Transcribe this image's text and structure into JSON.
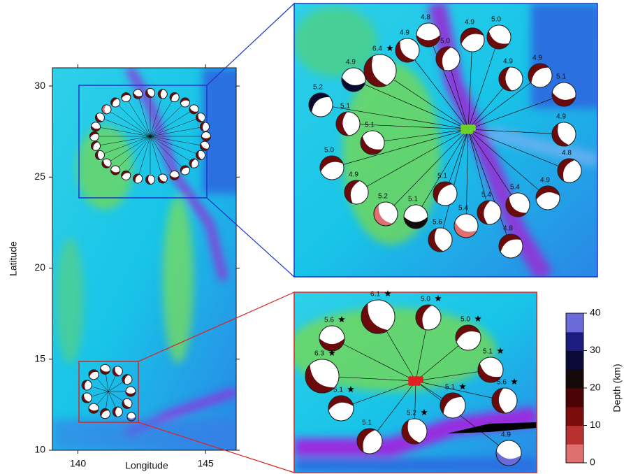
{
  "main_map": {
    "xlabel": "Longitude",
    "ylabel": "Latitude",
    "xlim": [
      139,
      146.2
    ],
    "ylim": [
      10,
      31
    ],
    "xticks": [
      140,
      145
    ],
    "yticks": [
      10,
      15,
      20,
      25,
      30
    ]
  },
  "inset_north": {
    "events": [
      {
        "mag": "4.8",
        "star": false,
        "color": "#6b0a0a"
      },
      {
        "mag": "4.9",
        "star": false,
        "color": "#6b0a0a"
      },
      {
        "mag": "5.0",
        "star": false,
        "color": "#6b0a0a"
      },
      {
        "mag": "4.9",
        "star": false,
        "color": "#6b0a0a"
      },
      {
        "mag": "5.0",
        "star": false,
        "color": "#6b0a0a"
      },
      {
        "mag": "4.9",
        "star": false,
        "color": "#6b0a0a"
      },
      {
        "mag": "4.9",
        "star": false,
        "color": "#6b0a0a"
      },
      {
        "mag": "5.1",
        "star": false,
        "color": "#6b0a0a"
      },
      {
        "mag": "4.9",
        "star": false,
        "color": "#6b0a0a"
      },
      {
        "mag": "4.8",
        "star": false,
        "color": "#6b0a0a"
      },
      {
        "mag": "4.9",
        "star": false,
        "color": "#6b0a0a"
      },
      {
        "mag": "5.4",
        "star": false,
        "color": "#6b0a0a"
      },
      {
        "mag": "5.4",
        "star": false,
        "color": "#6b0a0a"
      },
      {
        "mag": "4.8",
        "star": false,
        "color": "#6b0a0a"
      },
      {
        "mag": "5.4",
        "star": false,
        "color": "#e07070"
      },
      {
        "mag": "5.6",
        "star": false,
        "color": "#6b0a0a"
      },
      {
        "mag": "5.1",
        "star": false,
        "color": "#6b0a0a"
      },
      {
        "mag": "5.1",
        "star": false,
        "color": "#120a0a"
      },
      {
        "mag": "5.2",
        "star": false,
        "color": "#e07070"
      },
      {
        "mag": "4.9",
        "star": false,
        "color": "#6b0a0a"
      },
      {
        "mag": "5.0",
        "star": false,
        "color": "#6b0a0a"
      },
      {
        "mag": "5.1",
        "star": false,
        "color": "#6b0a0a"
      },
      {
        "mag": "5.1",
        "star": false,
        "color": "#6b0a0a"
      },
      {
        "mag": "5.2",
        "star": false,
        "color": "#0a0a30"
      },
      {
        "mag": "4.9",
        "star": false,
        "color": "#0a0a30"
      },
      {
        "mag": "6.4",
        "star": true,
        "color": "#6b0a0a"
      }
    ]
  },
  "inset_south": {
    "events": [
      {
        "mag": "5.6",
        "star": true,
        "color": "#6b0a0a"
      },
      {
        "mag": "6.1",
        "star": true,
        "color": "#6b0a0a"
      },
      {
        "mag": "5.0",
        "star": true,
        "color": "#6b0a0a"
      },
      {
        "mag": "5.0",
        "star": true,
        "color": "#6b0a0a"
      },
      {
        "mag": "5.1",
        "star": true,
        "color": "#6b0a0a"
      },
      {
        "mag": "5.6",
        "star": true,
        "color": "#6b0a0a"
      },
      {
        "mag": "5.1",
        "star": true,
        "color": "#6b0a0a"
      },
      {
        "mag": "4.9",
        "star": false,
        "color": "#6a6ad8"
      },
      {
        "mag": "5.2",
        "star": true,
        "color": "#6b0a0a"
      },
      {
        "mag": "5.1",
        "star": false,
        "color": "#6b0a0a"
      },
      {
        "mag": "5.1",
        "star": true,
        "color": "#6b0a0a"
      },
      {
        "mag": "6.3",
        "star": true,
        "color": "#6b0a0a"
      }
    ]
  },
  "colorbar": {
    "label": "Depth (km)",
    "lim": [
      0,
      40
    ],
    "ticks": [
      0,
      10,
      20,
      30,
      40
    ],
    "colors": [
      "#e07070",
      "#b83030",
      "#7a0c0c",
      "#4a0404",
      "#140808",
      "#0a0a36",
      "#1c1c80",
      "#6a6ad8"
    ]
  }
}
